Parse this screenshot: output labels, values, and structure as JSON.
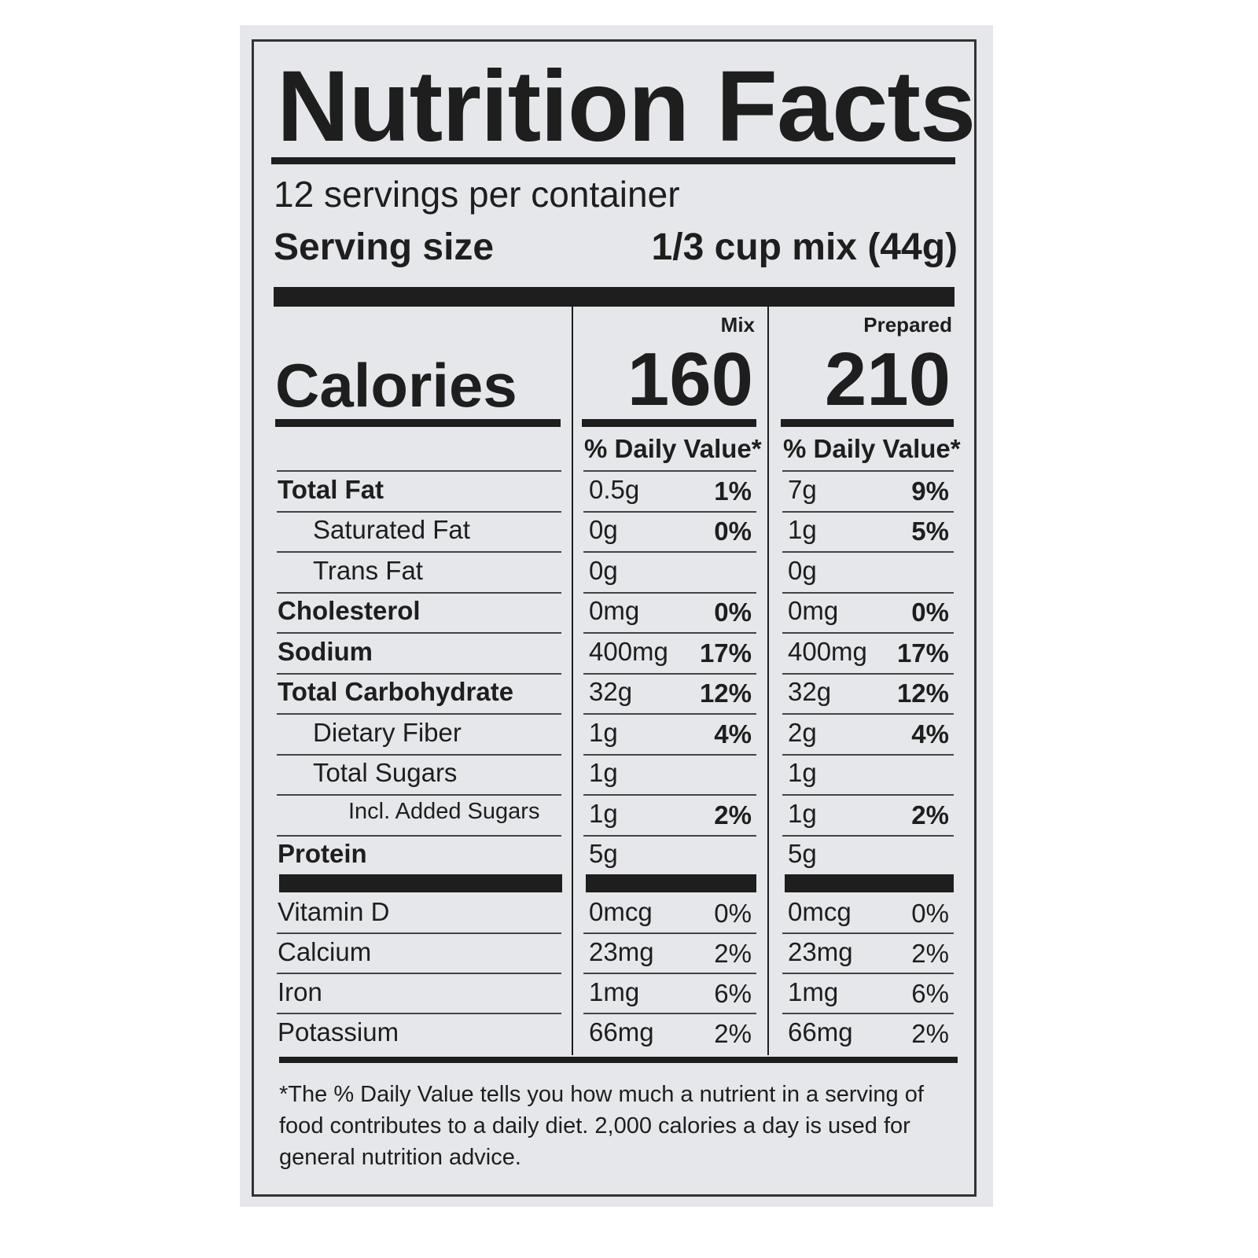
{
  "title": "Nutrition Facts",
  "servings": "12 servings per container",
  "serving_size": {
    "label": "Serving size",
    "value": "1/3 cup mix (44g)"
  },
  "calories_label": "Calories",
  "columns": [
    {
      "name": "Mix",
      "calories": 160,
      "dv_header": "% Daily Value*"
    },
    {
      "name": "Prepared",
      "calories": 210,
      "dv_header": "% Daily Value*"
    }
  ],
  "nutrients": [
    {
      "name": "Total Fat",
      "mix": [
        "0.5g",
        "1%"
      ],
      "prepared": [
        "7g",
        "9%"
      ]
    },
    {
      "name": "Saturated Fat",
      "mix": [
        "0g",
        "0%"
      ],
      "prepared": [
        "1g",
        "5%"
      ]
    },
    {
      "name": "Trans Fat",
      "mix": [
        "0g",
        null
      ],
      "prepared": [
        "0g",
        null
      ]
    },
    {
      "name": "Cholesterol",
      "mix": [
        "0mg",
        "0%"
      ],
      "prepared": [
        "0mg",
        "0%"
      ]
    },
    {
      "name": "Sodium",
      "mix": [
        "400mg",
        "17%"
      ],
      "prepared": [
        "400mg",
        "17%"
      ]
    },
    {
      "name": "Total Carbohydrate",
      "mix": [
        "32g",
        "12%"
      ],
      "prepared": [
        "32g",
        "12%"
      ]
    },
    {
      "name": "Dietary Fiber",
      "mix": [
        "1g",
        "4%"
      ],
      "prepared": [
        "2g",
        "4%"
      ]
    },
    {
      "name": "Total Sugars",
      "mix": [
        "1g",
        null
      ],
      "prepared": [
        "1g",
        null
      ]
    },
    {
      "name": "Incl. Added Sugars",
      "mix": [
        "1g",
        "2%"
      ],
      "prepared": [
        "1g",
        "2%"
      ]
    },
    {
      "name": "Protein",
      "mix": [
        "5g",
        null
      ],
      "prepared": [
        "5g",
        null
      ]
    }
  ],
  "vitamins": [
    {
      "name": "Vitamin D",
      "mix": [
        "0mcg",
        "0%"
      ],
      "prepared": [
        "0mcg",
        "0%"
      ]
    },
    {
      "name": "Calcium",
      "mix": [
        "23mg",
        "2%"
      ],
      "prepared": [
        "23mg",
        "2%"
      ]
    },
    {
      "name": "Iron",
      "mix": [
        "1mg",
        "6%"
      ],
      "prepared": [
        "1mg",
        "6%"
      ]
    },
    {
      "name": "Potassium",
      "mix": [
        "66mg",
        "2%"
      ],
      "prepared": [
        "66mg",
        "2%"
      ]
    }
  ],
  "footnote": "*The % Daily Value tells you how much a nutrient in a serving of food contributes to a daily diet. 2,000 calories a day is used for general nutrition advice."
}
